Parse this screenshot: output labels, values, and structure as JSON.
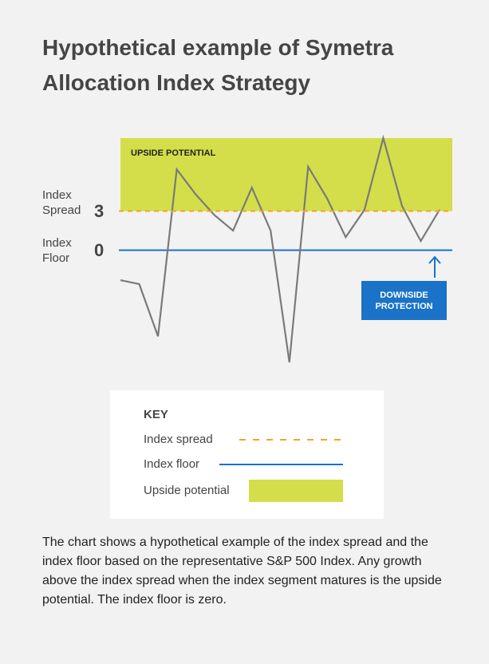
{
  "title": "Hypothetical example of Symetra Allocation Index Strategy",
  "chart_data": {
    "type": "line",
    "categories": [
      null,
      null,
      null,
      null,
      null,
      null,
      null,
      null,
      null,
      null,
      null,
      null,
      null,
      null,
      null,
      null,
      null,
      null
    ],
    "values": [
      -2.3,
      -2.6,
      -6.6,
      6.2,
      4.3,
      2.7,
      1.5,
      4.8,
      1.5,
      -8.6,
      6.4,
      4.0,
      1.0,
      3.1,
      8.6,
      3.4,
      0.7,
      3.1
    ],
    "color": "#7a7a7a",
    "ylim": [
      -8.6,
      8.6
    ],
    "index_spread": {
      "label": "Index Spread",
      "value": 3,
      "color": "#f5a623"
    },
    "index_floor": {
      "label": "Index Floor",
      "value": 0,
      "color": "#1a73c8"
    },
    "upside_label": "UPSIDE POTENTIAL",
    "upside_color": "#d4de4a",
    "downside_label": "DOWNSIDE PROTECTION"
  },
  "key": {
    "title": "KEY",
    "items": [
      "Index spread",
      "Index floor",
      "Upside potential"
    ]
  },
  "description": "The chart shows a hypothetical example of the index spread and the index floor based on the representative S&P 500 Index. Any growth above the index spread when the index segment matures is the upside potential. The index floor is zero."
}
